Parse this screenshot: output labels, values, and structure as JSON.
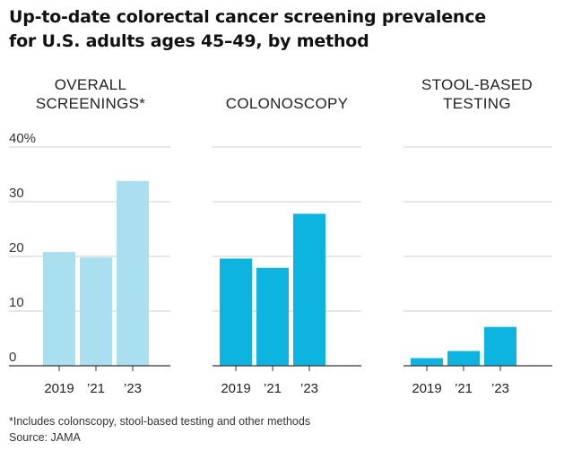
{
  "title_lines": [
    "Up-to-date colorectal cancer screening prevalence",
    "for U.S. adults ages 45–49, by method"
  ],
  "footnote": "*Includes colonscopy, stool-based testing and other methods",
  "source": "Source: JAMA",
  "colors": {
    "light_bar": "#aadff0",
    "dark_bar": "#0eb4e0",
    "grid": "#cccccc",
    "baseline": "#333333"
  },
  "chart_data": {
    "type": "bar",
    "title": "Up-to-date colorectal cancer screening prevalence for U.S. adults ages 45–49, by method",
    "categories": [
      "2019",
      "’21",
      "’23"
    ],
    "yticks": [
      0,
      10,
      20,
      30
    ],
    "ytick_top_label": "40%",
    "ylim": [
      0,
      40
    ],
    "panels": [
      {
        "name": "overall",
        "title_lines": [
          "OVERALL",
          "SCREENINGS*"
        ],
        "color": "#aadff0",
        "values": [
          20.8,
          19.8,
          33.8
        ]
      },
      {
        "name": "colonoscopy",
        "title_lines": [
          "COLONOSCOPY"
        ],
        "color": "#0eb4e0",
        "values": [
          19.6,
          17.9,
          27.8
        ]
      },
      {
        "name": "stool-based-testing",
        "title_lines": [
          "STOOL-BASED",
          "TESTING"
        ],
        "color": "#0eb4e0",
        "values": [
          1.4,
          2.7,
          7.1
        ]
      }
    ]
  }
}
